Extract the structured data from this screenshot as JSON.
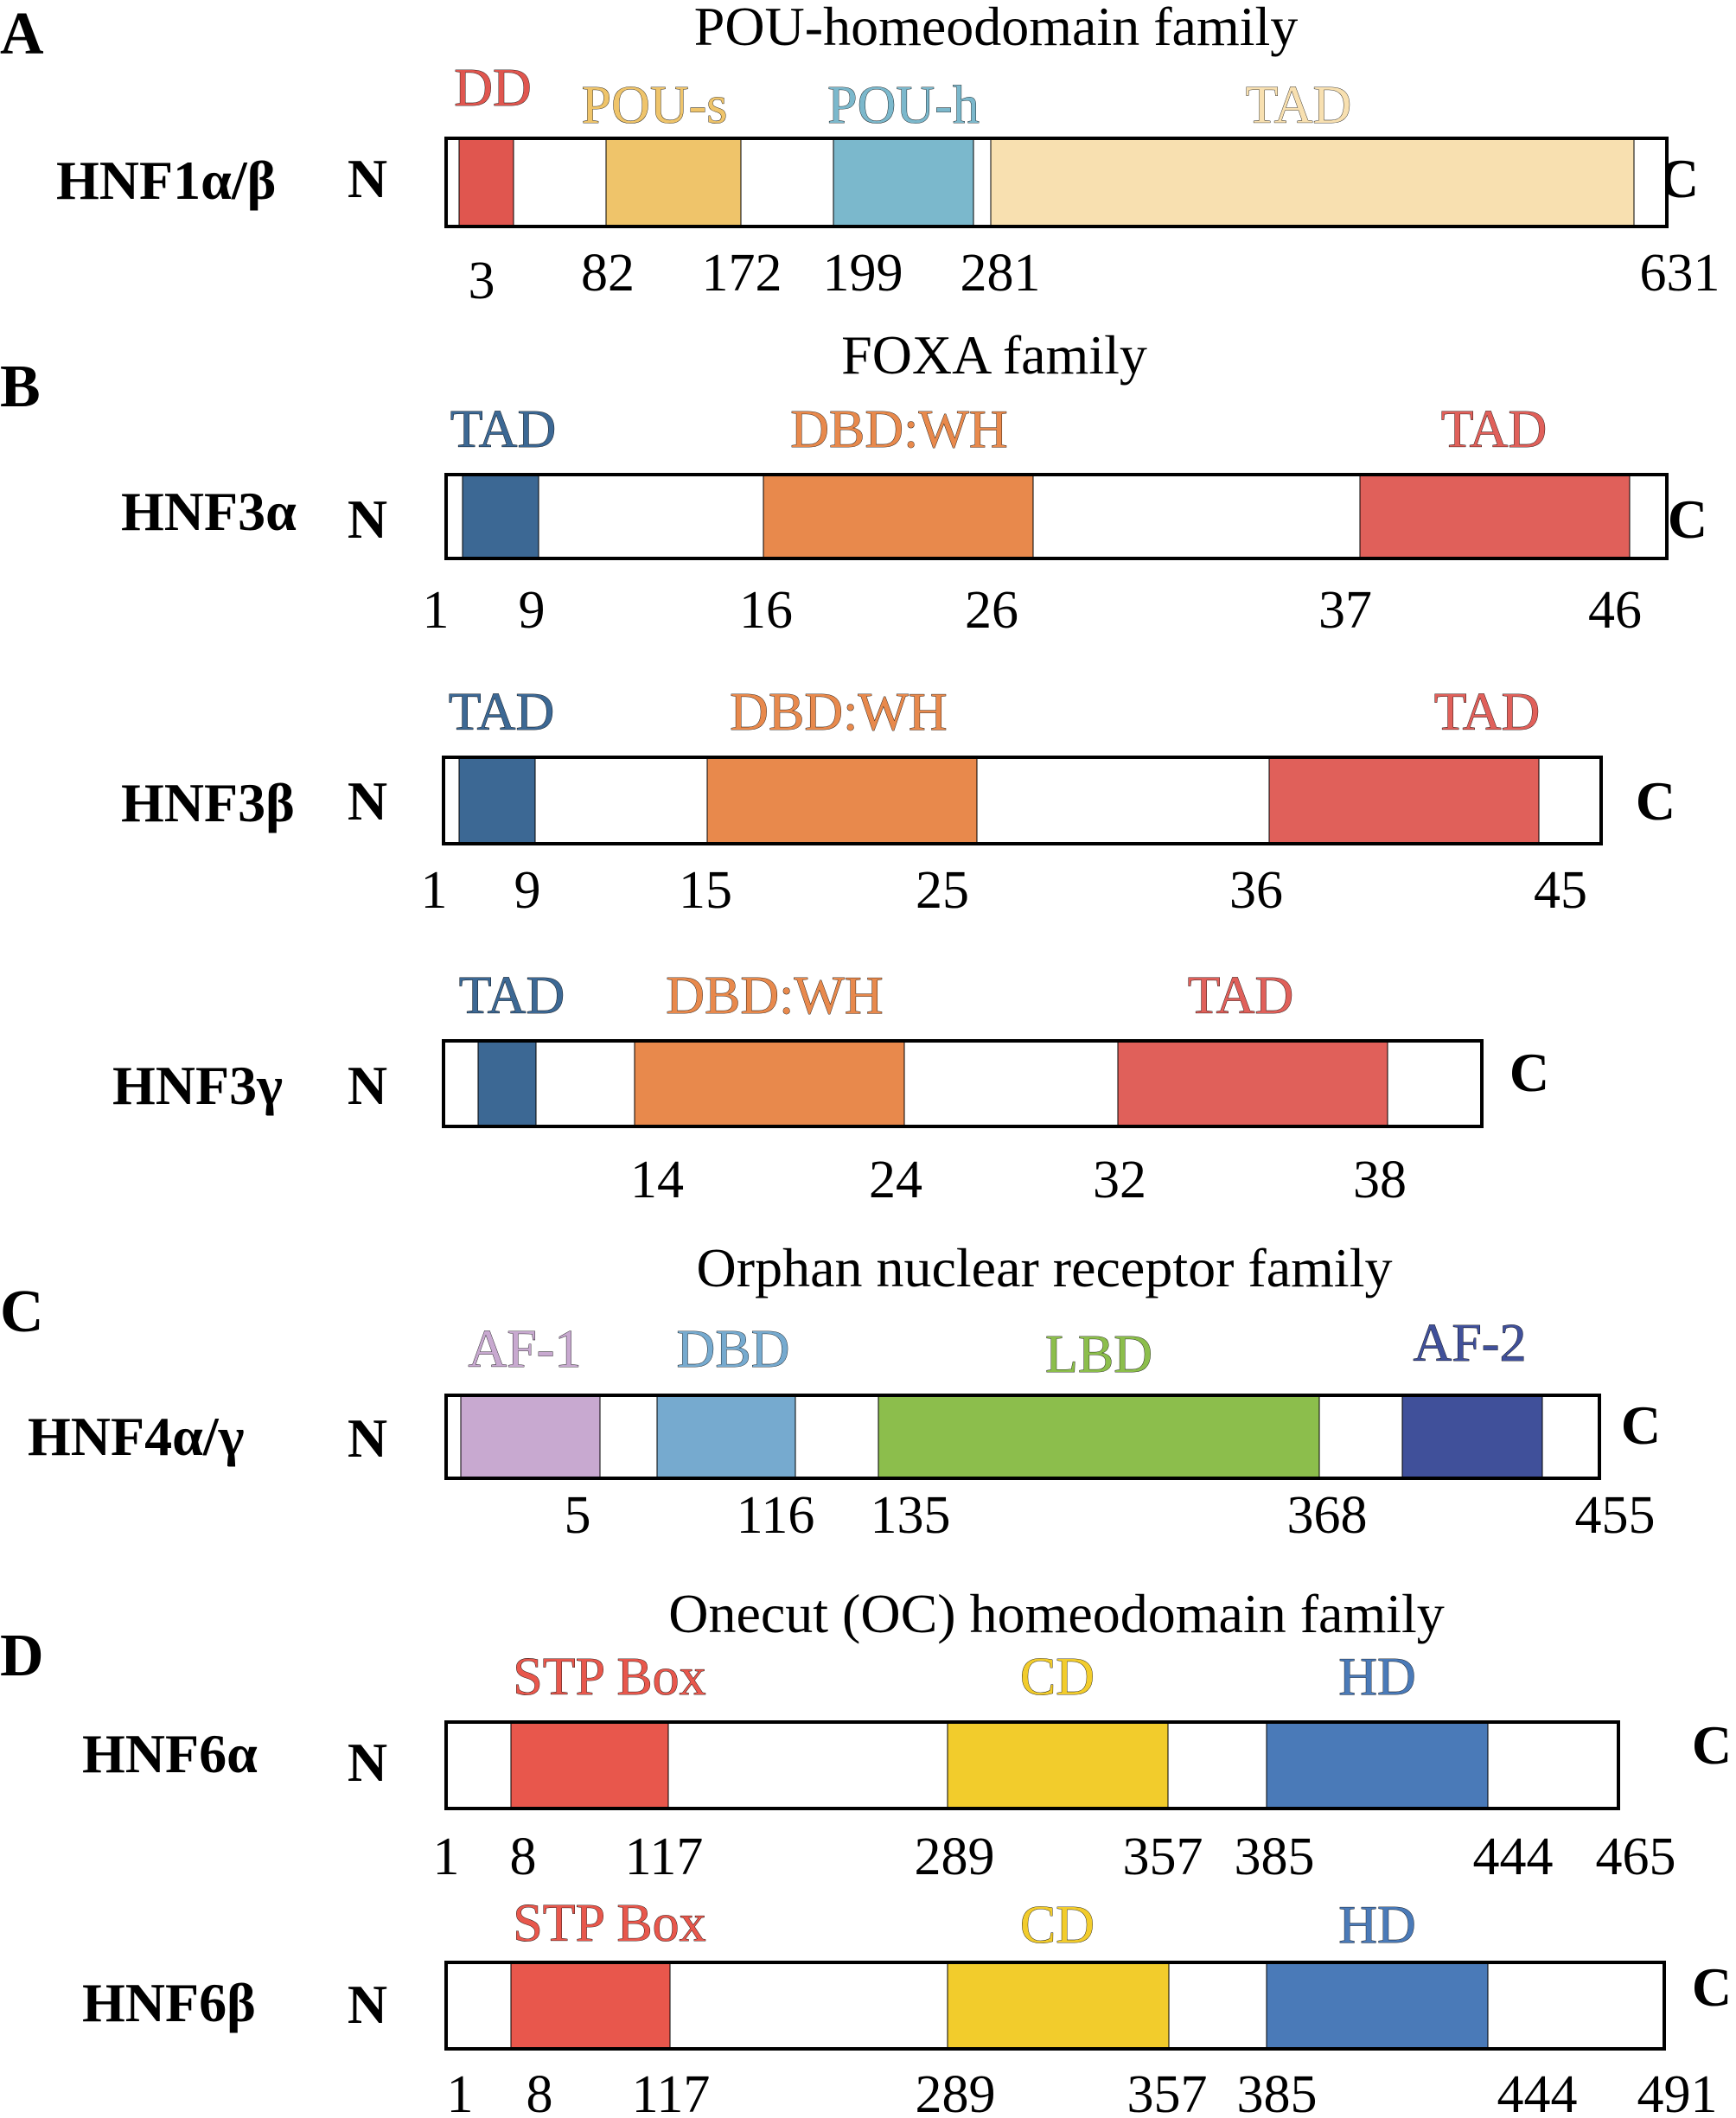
{
  "colors": {
    "dd": "#e0564f",
    "pou_s": "#efc46a",
    "pou_h": "#7bb8cc",
    "tad_a": "#f8e0b0",
    "tad_blue": "#3c6894",
    "dbd_wh": "#e8894c",
    "tad_red": "#e0605a",
    "af1": "#c8a9d0",
    "dbd_c": "#76aacf",
    "lbd": "#8cbe4c",
    "af2": "#40509a",
    "stp": "#e8574c",
    "cd": "#f2cc2c",
    "hd": "#4a7ab8",
    "frame": "#000000"
  },
  "sections": [
    {
      "letter": "A",
      "family_title": "POU-homeodomain family",
      "proteins": [
        {
          "name": "HNF1α/β",
          "n_label": "N",
          "c_label": "C",
          "domains": [
            {
              "label": "DD",
              "color_key": "dd"
            },
            {
              "label": "POU-s",
              "color_key": "pou_s"
            },
            {
              "label": "POU-h",
              "color_key": "pou_h"
            },
            {
              "label": "TAD",
              "color_key": "tad_a"
            }
          ],
          "positions": [
            "3",
            "82",
            "172",
            "199",
            "281",
            "631"
          ]
        }
      ]
    },
    {
      "letter": "B",
      "family_title": "FOXA family",
      "proteins": [
        {
          "name": "HNF3α",
          "n_label": "N",
          "c_label": "C",
          "domains": [
            {
              "label": "TAD",
              "color_key": "tad_blue"
            },
            {
              "label": "DBD:WH",
              "color_key": "dbd_wh"
            },
            {
              "label": "TAD",
              "color_key": "tad_red"
            }
          ],
          "positions": [
            "1",
            "9",
            "16",
            "26",
            "37",
            "46"
          ]
        },
        {
          "name": "HNF3β",
          "n_label": "N",
          "c_label": "C",
          "domains": [
            {
              "label": "TAD",
              "color_key": "tad_blue"
            },
            {
              "label": "DBD:WH",
              "color_key": "dbd_wh"
            },
            {
              "label": "TAD",
              "color_key": "tad_red"
            }
          ],
          "positions": [
            "1",
            "9",
            "15",
            "25",
            "36",
            "45"
          ]
        },
        {
          "name": "HNF3γ",
          "n_label": "N",
          "c_label": "C",
          "domains": [
            {
              "label": "TAD",
              "color_key": "tad_blue"
            },
            {
              "label": "DBD:WH",
              "color_key": "dbd_wh"
            },
            {
              "label": "TAD",
              "color_key": "tad_red"
            }
          ],
          "positions": [
            "14",
            "24",
            "32",
            "38"
          ]
        }
      ]
    },
    {
      "letter": "C",
      "family_title": "Orphan nuclear receptor family",
      "proteins": [
        {
          "name": "HNF4α/γ",
          "n_label": "N",
          "c_label": "C",
          "domains": [
            {
              "label": "AF-1",
              "color_key": "af1"
            },
            {
              "label": "DBD",
              "color_key": "dbd_c"
            },
            {
              "label": "LBD",
              "color_key": "lbd"
            },
            {
              "label": "AF-2",
              "color_key": "af2"
            }
          ],
          "positions": [
            "5",
            "116",
            "135",
            "368",
            "455"
          ]
        }
      ]
    },
    {
      "letter": "D",
      "family_title": "Onecut (OC) homeodomain family",
      "proteins": [
        {
          "name": "HNF6α",
          "n_label": "N",
          "c_label": "C",
          "domains": [
            {
              "label": "STP Box",
              "color_key": "stp"
            },
            {
              "label": "CD",
              "color_key": "cd"
            },
            {
              "label": "HD",
              "color_key": "hd"
            }
          ],
          "positions": [
            "1",
            "8",
            "117",
            "289",
            "357",
            "385",
            "444",
            "465"
          ]
        },
        {
          "name": "HNF6β",
          "n_label": "N",
          "c_label": "C",
          "domains": [
            {
              "label": "STP Box",
              "color_key": "stp"
            },
            {
              "label": "CD",
              "color_key": "cd"
            },
            {
              "label": "HD",
              "color_key": "hd"
            }
          ],
          "positions": [
            "1",
            "8",
            "117",
            "289",
            "357",
            "385",
            "444",
            "491"
          ]
        }
      ]
    }
  ]
}
